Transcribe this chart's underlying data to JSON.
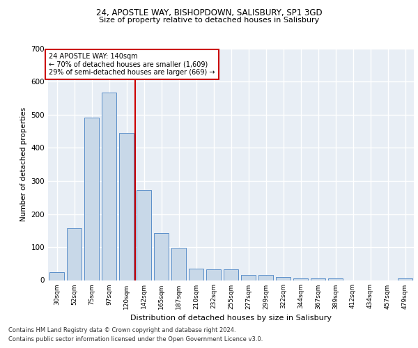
{
  "title1": "24, APOSTLE WAY, BISHOPDOWN, SALISBURY, SP1 3GD",
  "title2": "Size of property relative to detached houses in Salisbury",
  "xlabel": "Distribution of detached houses by size in Salisbury",
  "ylabel": "Number of detached properties",
  "categories": [
    "30sqm",
    "52sqm",
    "75sqm",
    "97sqm",
    "120sqm",
    "142sqm",
    "165sqm",
    "187sqm",
    "210sqm",
    "232sqm",
    "255sqm",
    "277sqm",
    "299sqm",
    "322sqm",
    "344sqm",
    "367sqm",
    "389sqm",
    "412sqm",
    "434sqm",
    "457sqm",
    "479sqm"
  ],
  "values": [
    25,
    157,
    492,
    567,
    445,
    272,
    143,
    98,
    35,
    32,
    32,
    15,
    15,
    10,
    6,
    5,
    5,
    0,
    0,
    0,
    5
  ],
  "bar_color": "#c8d8e8",
  "bar_edge_color": "#5b8fc9",
  "background_color": "#e8eef5",
  "grid_color": "#ffffff",
  "annotation_text_line1": "24 APOSTLE WAY: 140sqm",
  "annotation_text_line2": "← 70% of detached houses are smaller (1,609)",
  "annotation_text_line3": "29% of semi-detached houses are larger (669) →",
  "vline_color": "#cc0000",
  "vline_x": 4.5,
  "footer1": "Contains HM Land Registry data © Crown copyright and database right 2024.",
  "footer2": "Contains public sector information licensed under the Open Government Licence v3.0.",
  "ylim": [
    0,
    700
  ],
  "yticks": [
    0,
    100,
    200,
    300,
    400,
    500,
    600,
    700
  ]
}
